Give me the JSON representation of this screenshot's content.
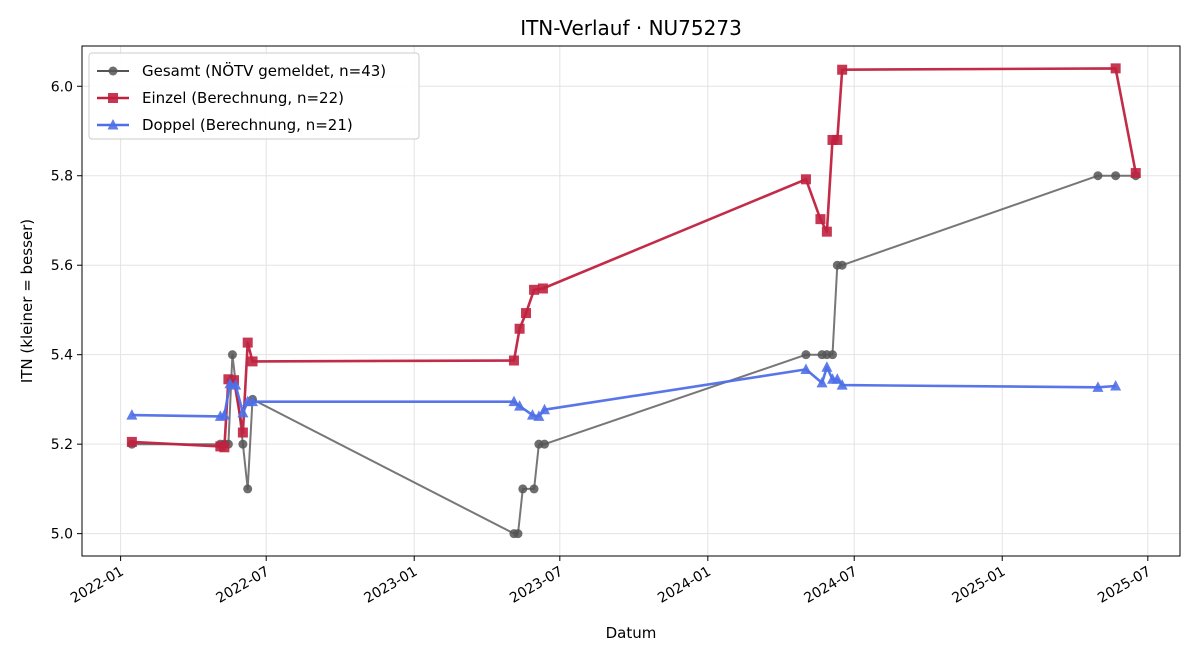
{
  "chart_data": {
    "type": "line",
    "title": "ITN-Verlauf · NU75273",
    "xlabel": "Datum",
    "ylabel": "ITN  (kleiner = besser)",
    "xlim": [
      "2021-11-14",
      "2025-08-10"
    ],
    "ylim": [
      4.95,
      6.09
    ],
    "x_ticks": [
      {
        "date": "2022-01-01",
        "label": "2022-01"
      },
      {
        "date": "2022-07-01",
        "label": "2022-07"
      },
      {
        "date": "2023-01-01",
        "label": "2023-01"
      },
      {
        "date": "2023-07-01",
        "label": "2023-07"
      },
      {
        "date": "2024-01-01",
        "label": "2024-01"
      },
      {
        "date": "2024-07-01",
        "label": "2024-07"
      },
      {
        "date": "2025-01-01",
        "label": "2025-01"
      },
      {
        "date": "2025-07-01",
        "label": "2025-07"
      }
    ],
    "y_ticks": [
      {
        "value": 5.0,
        "label": "5.0"
      },
      {
        "value": 5.2,
        "label": "5.2"
      },
      {
        "value": 5.4,
        "label": "5.4"
      },
      {
        "value": 5.6,
        "label": "5.6"
      },
      {
        "value": 5.8,
        "label": "5.8"
      },
      {
        "value": 6.0,
        "label": "6.0"
      }
    ],
    "grid": true,
    "legend_position": "top-left",
    "series": [
      {
        "name": "Gesamt (NÖTV gemeldet, n=43)",
        "color": "#555555",
        "marker": "circle",
        "points": [
          [
            "2022-01-15",
            5.2
          ],
          [
            "2022-05-05",
            5.2
          ],
          [
            "2022-05-10",
            5.2
          ],
          [
            "2022-05-15",
            5.2
          ],
          [
            "2022-05-20",
            5.4
          ],
          [
            "2022-06-02",
            5.2
          ],
          [
            "2022-06-08",
            5.1
          ],
          [
            "2022-06-14",
            5.3
          ],
          [
            "2023-05-05",
            5.0
          ],
          [
            "2023-05-10",
            5.0
          ],
          [
            "2023-05-16",
            5.1
          ],
          [
            "2023-05-30",
            5.1
          ],
          [
            "2023-06-05",
            5.2
          ],
          [
            "2023-06-12",
            5.2
          ],
          [
            "2024-05-02",
            5.4
          ],
          [
            "2024-05-22",
            5.4
          ],
          [
            "2024-05-28",
            5.4
          ],
          [
            "2024-06-04",
            5.4
          ],
          [
            "2024-06-10",
            5.6
          ],
          [
            "2024-06-16",
            5.6
          ],
          [
            "2025-04-30",
            5.8
          ],
          [
            "2025-05-22",
            5.8
          ],
          [
            "2025-06-16",
            5.8
          ]
        ]
      },
      {
        "name": "Einzel (Berechnung, n=22)",
        "color": "#c0213f",
        "marker": "square",
        "points": [
          [
            "2022-01-15",
            5.205
          ],
          [
            "2022-05-05",
            5.195
          ],
          [
            "2022-05-10",
            5.193
          ],
          [
            "2022-05-15",
            5.345
          ],
          [
            "2022-05-22",
            5.343
          ],
          [
            "2022-06-02",
            5.226
          ],
          [
            "2022-06-08",
            5.427
          ],
          [
            "2022-06-14",
            5.385
          ],
          [
            "2023-05-05",
            5.387
          ],
          [
            "2023-05-12",
            5.458
          ],
          [
            "2023-05-20",
            5.493
          ],
          [
            "2023-05-30",
            5.545
          ],
          [
            "2023-06-10",
            5.548
          ],
          [
            "2024-05-02",
            5.792
          ],
          [
            "2024-05-20",
            5.703
          ],
          [
            "2024-05-28",
            5.675
          ],
          [
            "2024-06-04",
            5.88
          ],
          [
            "2024-06-10",
            5.88
          ],
          [
            "2024-06-16",
            6.037
          ],
          [
            "2025-05-22",
            6.04
          ],
          [
            "2025-06-16",
            5.806
          ]
        ]
      },
      {
        "name": "Doppel (Berechnung, n=21)",
        "color": "#4f6fe8",
        "marker": "triangle",
        "points": [
          [
            "2022-01-15",
            5.265
          ],
          [
            "2022-05-05",
            5.262
          ],
          [
            "2022-05-10",
            5.265
          ],
          [
            "2022-05-17",
            5.335
          ],
          [
            "2022-05-24",
            5.332
          ],
          [
            "2022-06-02",
            5.27
          ],
          [
            "2022-06-08",
            5.295
          ],
          [
            "2022-06-14",
            5.295
          ],
          [
            "2023-05-05",
            5.295
          ],
          [
            "2023-05-12",
            5.285
          ],
          [
            "2023-05-28",
            5.265
          ],
          [
            "2023-06-05",
            5.262
          ],
          [
            "2023-06-12",
            5.277
          ],
          [
            "2024-05-02",
            5.367
          ],
          [
            "2024-05-22",
            5.337
          ],
          [
            "2024-05-28",
            5.372
          ],
          [
            "2024-06-04",
            5.345
          ],
          [
            "2024-06-10",
            5.345
          ],
          [
            "2024-06-16",
            5.332
          ],
          [
            "2025-04-30",
            5.327
          ],
          [
            "2025-05-22",
            5.33
          ]
        ]
      }
    ]
  }
}
